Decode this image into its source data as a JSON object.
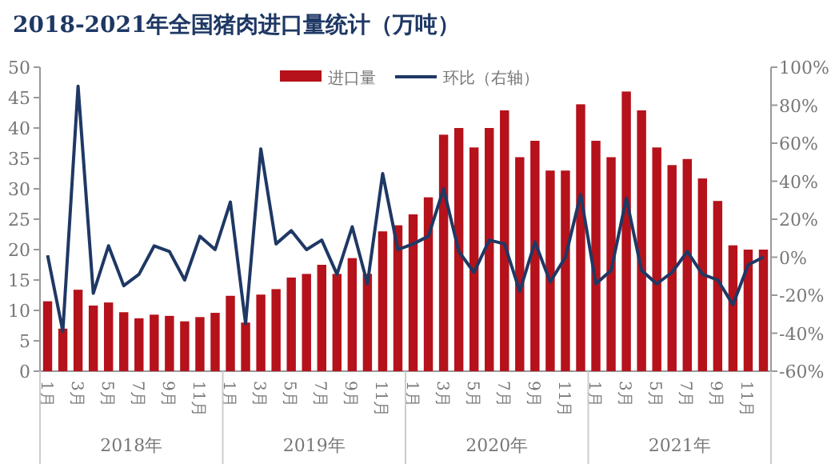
{
  "chart_data": {
    "type": "bar",
    "title": "2018-2021年全国猪肉进口量统计（万吨）",
    "categories": [
      "1月",
      null,
      "3月",
      null,
      "5月",
      null,
      "7月",
      null,
      "9月",
      null,
      "11月",
      null,
      "1月",
      null,
      "3月",
      null,
      "5月",
      null,
      "7月",
      null,
      "9月",
      null,
      "11月",
      null,
      "1月",
      null,
      "3月",
      null,
      "5月",
      null,
      "7月",
      null,
      "9月",
      null,
      "11月",
      null,
      "1月",
      null,
      "3月",
      null,
      "5月",
      null,
      "7月",
      null,
      "9月",
      null,
      "11月",
      null
    ],
    "series": [
      {
        "name": "进口量",
        "color": "#b5121b",
        "values": [
          11.5,
          7.0,
          13.4,
          10.8,
          11.3,
          9.7,
          8.7,
          9.3,
          9.1,
          8.2,
          8.9,
          9.6,
          12.4,
          8.0,
          12.6,
          13.5,
          15.4,
          16.0,
          17.5,
          16.0,
          18.6,
          16.0,
          23.0,
          24.0,
          25.8,
          28.6,
          38.9,
          40.0,
          36.8,
          40.0,
          42.9,
          35.2,
          37.9,
          33.0,
          33.0,
          43.9,
          37.9,
          35.2,
          46.0,
          42.9,
          36.8,
          33.9,
          34.9,
          31.7,
          28.0,
          20.7,
          20.0,
          20.0
        ]
      },
      {
        "name": "环比（右轴）",
        "type": "line",
        "axis": "y2",
        "color": "#1f3864",
        "values": [
          1,
          -39,
          90,
          -19,
          6,
          -15,
          -9,
          6,
          3,
          -12,
          11,
          4,
          29,
          -35,
          57,
          7,
          14,
          4,
          9,
          -9,
          16,
          -14,
          44,
          4,
          7,
          11,
          36,
          3,
          -8,
          9,
          7,
          -18,
          8,
          -13,
          0,
          33,
          -14,
          -7,
          31,
          -7,
          -14,
          -8,
          3,
          -9,
          -12,
          -25,
          -4,
          0
        ]
      }
    ],
    "ylim": [
      0,
      50
    ],
    "yticks": [
      0,
      5,
      10,
      15,
      20,
      25,
      30,
      35,
      40,
      45,
      50
    ],
    "y2lim": [
      -60,
      100
    ],
    "y2ticks": [
      {
        "value": -60,
        "label": "-60%"
      },
      {
        "value": -40,
        "label": "-40%"
      },
      {
        "value": -20,
        "label": "-20%"
      },
      {
        "value": 0,
        "label": "0%"
      },
      {
        "value": 20,
        "label": "20%"
      },
      {
        "value": 40,
        "label": "40%"
      },
      {
        "value": 60,
        "label": "60%"
      },
      {
        "value": 80,
        "label": "80%"
      },
      {
        "value": 100,
        "label": "100%"
      }
    ],
    "annotations": [
      "2018年",
      "2019年",
      "2020年",
      "2021年"
    ],
    "legend": "top",
    "grid": false,
    "marker": "none",
    "line_style": "solid"
  }
}
